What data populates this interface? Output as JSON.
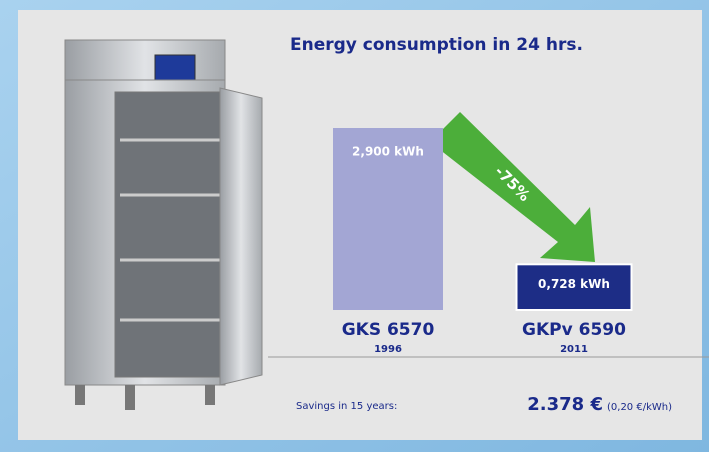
{
  "chart_data": {
    "type": "bar",
    "title": "Energy consumption in 24 hrs.",
    "categories": [
      "GKS 6570",
      "GKPv 6590"
    ],
    "category_years": [
      "1996",
      "2011"
    ],
    "values": [
      2.9,
      0.728
    ],
    "value_labels": [
      "2,900 kWh",
      "0,728 kWh"
    ],
    "colors": [
      "#a3a6d4",
      "#1d2d86"
    ],
    "annotation": "-75%"
  },
  "footer": {
    "label": "Savings in 15 years:",
    "amount": "2.378 €",
    "rate": "(0,20 €/kWh)"
  }
}
